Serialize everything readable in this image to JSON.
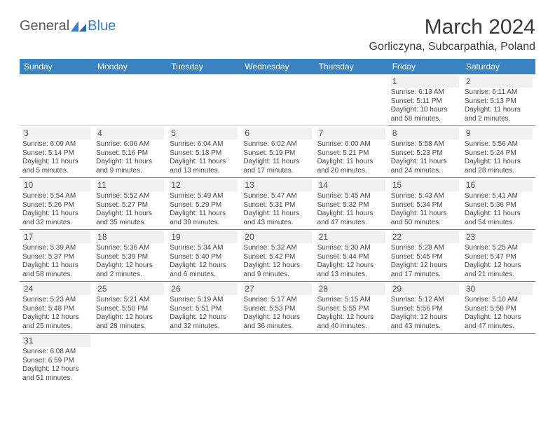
{
  "logo": {
    "text1": "General",
    "text2": "Blue"
  },
  "title": "March 2024",
  "location": "Gorliczyna, Subcarpathia, Poland",
  "colors": {
    "header_bg": "#3b83c0",
    "header_fg": "#ffffff",
    "row_divider": "#3b83c0",
    "logo_blue": "#3b7fc4"
  },
  "day_headers": [
    "Sunday",
    "Monday",
    "Tuesday",
    "Wednesday",
    "Thursday",
    "Friday",
    "Saturday"
  ],
  "weeks": [
    [
      null,
      null,
      null,
      null,
      null,
      {
        "n": "1",
        "sr": "Sunrise: 6:13 AM",
        "ss": "Sunset: 5:11 PM",
        "d1": "Daylight: 10 hours",
        "d2": "and 58 minutes."
      },
      {
        "n": "2",
        "sr": "Sunrise: 6:11 AM",
        "ss": "Sunset: 5:13 PM",
        "d1": "Daylight: 11 hours",
        "d2": "and 2 minutes."
      }
    ],
    [
      {
        "n": "3",
        "sr": "Sunrise: 6:09 AM",
        "ss": "Sunset: 5:14 PM",
        "d1": "Daylight: 11 hours",
        "d2": "and 5 minutes."
      },
      {
        "n": "4",
        "sr": "Sunrise: 6:06 AM",
        "ss": "Sunset: 5:16 PM",
        "d1": "Daylight: 11 hours",
        "d2": "and 9 minutes."
      },
      {
        "n": "5",
        "sr": "Sunrise: 6:04 AM",
        "ss": "Sunset: 5:18 PM",
        "d1": "Daylight: 11 hours",
        "d2": "and 13 minutes."
      },
      {
        "n": "6",
        "sr": "Sunrise: 6:02 AM",
        "ss": "Sunset: 5:19 PM",
        "d1": "Daylight: 11 hours",
        "d2": "and 17 minutes."
      },
      {
        "n": "7",
        "sr": "Sunrise: 6:00 AM",
        "ss": "Sunset: 5:21 PM",
        "d1": "Daylight: 11 hours",
        "d2": "and 20 minutes."
      },
      {
        "n": "8",
        "sr": "Sunrise: 5:58 AM",
        "ss": "Sunset: 5:23 PM",
        "d1": "Daylight: 11 hours",
        "d2": "and 24 minutes."
      },
      {
        "n": "9",
        "sr": "Sunrise: 5:56 AM",
        "ss": "Sunset: 5:24 PM",
        "d1": "Daylight: 11 hours",
        "d2": "and 28 minutes."
      }
    ],
    [
      {
        "n": "10",
        "sr": "Sunrise: 5:54 AM",
        "ss": "Sunset: 5:26 PM",
        "d1": "Daylight: 11 hours",
        "d2": "and 32 minutes."
      },
      {
        "n": "11",
        "sr": "Sunrise: 5:52 AM",
        "ss": "Sunset: 5:27 PM",
        "d1": "Daylight: 11 hours",
        "d2": "and 35 minutes."
      },
      {
        "n": "12",
        "sr": "Sunrise: 5:49 AM",
        "ss": "Sunset: 5:29 PM",
        "d1": "Daylight: 11 hours",
        "d2": "and 39 minutes."
      },
      {
        "n": "13",
        "sr": "Sunrise: 5:47 AM",
        "ss": "Sunset: 5:31 PM",
        "d1": "Daylight: 11 hours",
        "d2": "and 43 minutes."
      },
      {
        "n": "14",
        "sr": "Sunrise: 5:45 AM",
        "ss": "Sunset: 5:32 PM",
        "d1": "Daylight: 11 hours",
        "d2": "and 47 minutes."
      },
      {
        "n": "15",
        "sr": "Sunrise: 5:43 AM",
        "ss": "Sunset: 5:34 PM",
        "d1": "Daylight: 11 hours",
        "d2": "and 50 minutes."
      },
      {
        "n": "16",
        "sr": "Sunrise: 5:41 AM",
        "ss": "Sunset: 5:36 PM",
        "d1": "Daylight: 11 hours",
        "d2": "and 54 minutes."
      }
    ],
    [
      {
        "n": "17",
        "sr": "Sunrise: 5:39 AM",
        "ss": "Sunset: 5:37 PM",
        "d1": "Daylight: 11 hours",
        "d2": "and 58 minutes."
      },
      {
        "n": "18",
        "sr": "Sunrise: 5:36 AM",
        "ss": "Sunset: 5:39 PM",
        "d1": "Daylight: 12 hours",
        "d2": "and 2 minutes."
      },
      {
        "n": "19",
        "sr": "Sunrise: 5:34 AM",
        "ss": "Sunset: 5:40 PM",
        "d1": "Daylight: 12 hours",
        "d2": "and 6 minutes."
      },
      {
        "n": "20",
        "sr": "Sunrise: 5:32 AM",
        "ss": "Sunset: 5:42 PM",
        "d1": "Daylight: 12 hours",
        "d2": "and 9 minutes."
      },
      {
        "n": "21",
        "sr": "Sunrise: 5:30 AM",
        "ss": "Sunset: 5:44 PM",
        "d1": "Daylight: 12 hours",
        "d2": "and 13 minutes."
      },
      {
        "n": "22",
        "sr": "Sunrise: 5:28 AM",
        "ss": "Sunset: 5:45 PM",
        "d1": "Daylight: 12 hours",
        "d2": "and 17 minutes."
      },
      {
        "n": "23",
        "sr": "Sunrise: 5:25 AM",
        "ss": "Sunset: 5:47 PM",
        "d1": "Daylight: 12 hours",
        "d2": "and 21 minutes."
      }
    ],
    [
      {
        "n": "24",
        "sr": "Sunrise: 5:23 AM",
        "ss": "Sunset: 5:48 PM",
        "d1": "Daylight: 12 hours",
        "d2": "and 25 minutes."
      },
      {
        "n": "25",
        "sr": "Sunrise: 5:21 AM",
        "ss": "Sunset: 5:50 PM",
        "d1": "Daylight: 12 hours",
        "d2": "and 28 minutes."
      },
      {
        "n": "26",
        "sr": "Sunrise: 5:19 AM",
        "ss": "Sunset: 5:51 PM",
        "d1": "Daylight: 12 hours",
        "d2": "and 32 minutes."
      },
      {
        "n": "27",
        "sr": "Sunrise: 5:17 AM",
        "ss": "Sunset: 5:53 PM",
        "d1": "Daylight: 12 hours",
        "d2": "and 36 minutes."
      },
      {
        "n": "28",
        "sr": "Sunrise: 5:15 AM",
        "ss": "Sunset: 5:55 PM",
        "d1": "Daylight: 12 hours",
        "d2": "and 40 minutes."
      },
      {
        "n": "29",
        "sr": "Sunrise: 5:12 AM",
        "ss": "Sunset: 5:56 PM",
        "d1": "Daylight: 12 hours",
        "d2": "and 43 minutes."
      },
      {
        "n": "30",
        "sr": "Sunrise: 5:10 AM",
        "ss": "Sunset: 5:58 PM",
        "d1": "Daylight: 12 hours",
        "d2": "and 47 minutes."
      }
    ],
    [
      {
        "n": "31",
        "sr": "Sunrise: 6:08 AM",
        "ss": "Sunset: 6:59 PM",
        "d1": "Daylight: 12 hours",
        "d2": "and 51 minutes."
      },
      null,
      null,
      null,
      null,
      null,
      null
    ]
  ]
}
